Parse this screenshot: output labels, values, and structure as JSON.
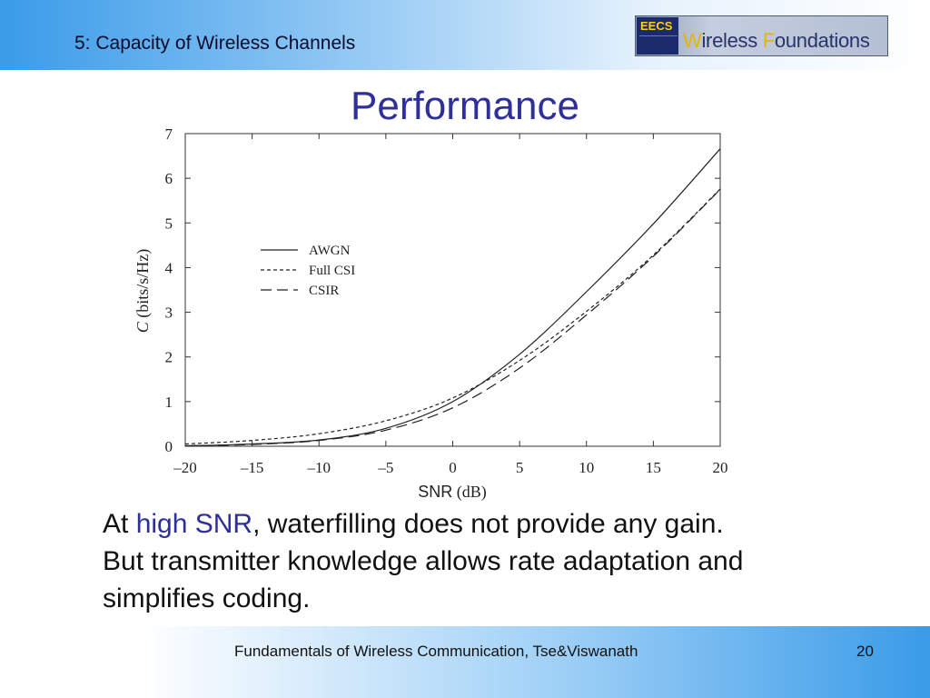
{
  "header": {
    "course_title": "5: Capacity of Wireless Channels"
  },
  "logo": {
    "badge": "EECS",
    "text_pre": "W",
    "text_mid": "ireless ",
    "text_f": "F",
    "text_post": "oundations"
  },
  "slide": {
    "title": "Performance"
  },
  "chart_data": {
    "type": "line",
    "xlabel_main": "SNR",
    "xlabel_unit": "(dB)",
    "ylabel_var": "C",
    "ylabel_unit": "(bits/s/Hz)",
    "xlim": [
      -20,
      20
    ],
    "ylim": [
      0,
      7
    ],
    "x_ticks": [
      -20,
      -15,
      -10,
      -5,
      0,
      5,
      10,
      15,
      20
    ],
    "x_tick_labels": [
      "–20",
      "–15",
      "–10",
      "–5",
      "0",
      "5",
      "10",
      "15",
      "20"
    ],
    "y_ticks": [
      0,
      1,
      2,
      3,
      4,
      5,
      6,
      7
    ],
    "y_tick_labels": [
      "0",
      "1",
      "2",
      "3",
      "4",
      "5",
      "6",
      "7"
    ],
    "grid": false,
    "legend_position": "upper-left",
    "series": [
      {
        "name": "AWGN",
        "style": "solid",
        "x": [
          -20,
          -15,
          -10,
          -5,
          0,
          5,
          10,
          15,
          20
        ],
        "y": [
          0.01,
          0.05,
          0.14,
          0.4,
          1.0,
          2.06,
          3.46,
          4.98,
          6.66
        ]
      },
      {
        "name": "Full CSI",
        "style": "dotted",
        "x": [
          -20,
          -15,
          -10,
          -5,
          0,
          5,
          10,
          15,
          20
        ],
        "y": [
          0.05,
          0.13,
          0.28,
          0.57,
          1.08,
          1.92,
          3.02,
          4.28,
          5.76
        ]
      },
      {
        "name": "CSIR",
        "style": "dashed",
        "x": [
          -20,
          -15,
          -10,
          -5,
          0,
          5,
          10,
          15,
          20
        ],
        "y": [
          0.01,
          0.04,
          0.13,
          0.36,
          0.86,
          1.75,
          2.94,
          4.25,
          5.75
        ]
      }
    ]
  },
  "body": {
    "line1_pre": "At ",
    "line1_highlight": "high SNR",
    "line1_post": ", waterfilling does not provide any gain.",
    "line2": "But transmitter knowledge allows rate adaptation and",
    "line3": "simplifies coding."
  },
  "footer": {
    "text": "Fundamentals of Wireless Communication, Tse&Viswanath",
    "page_number": "20"
  }
}
